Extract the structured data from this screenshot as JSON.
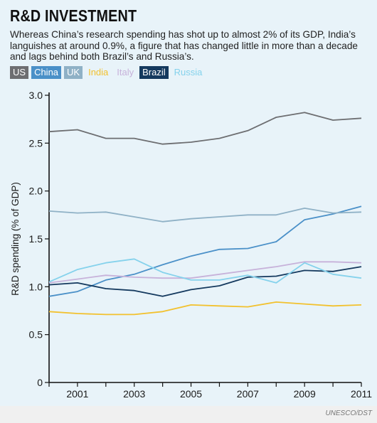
{
  "title": "R&D INVESTMENT",
  "subtitle": "Whereas China’s research spending has shot up to almost 2% of its GDP, India’s languishes at around 0.9%, a figure that has changed little in more than a decade and lags behind both Brazil’s and Russia’s.",
  "source": "UNESCO/DST",
  "chart_data": {
    "type": "line",
    "ylabel": "R&D spending (% of GDP)",
    "xlabel": "",
    "ylim": [
      0,
      3.0
    ],
    "xlim": [
      2000,
      2011
    ],
    "yticks": [
      "0",
      "0.5",
      "1.0",
      "1.5",
      "2.0",
      "2.5",
      "3.0"
    ],
    "xticks": [
      "2001",
      "2003",
      "2005",
      "2007",
      "2009",
      "2011"
    ],
    "grid": false,
    "legend_position": "top-left",
    "x": [
      2000,
      2001,
      2002,
      2003,
      2004,
      2005,
      2006,
      2007,
      2008,
      2009,
      2010,
      2011
    ],
    "series": [
      {
        "name": "US",
        "color": "#6d6e71",
        "values": [
          2.62,
          2.64,
          2.55,
          2.55,
          2.49,
          2.51,
          2.55,
          2.63,
          2.77,
          2.82,
          2.74,
          2.76
        ]
      },
      {
        "name": "China",
        "color": "#4a90c8",
        "values": [
          0.9,
          0.95,
          1.07,
          1.13,
          1.23,
          1.32,
          1.39,
          1.4,
          1.47,
          1.7,
          1.76,
          1.84
        ]
      },
      {
        "name": "UK",
        "color": "#8fb1c6",
        "values": [
          1.79,
          1.77,
          1.78,
          1.73,
          1.68,
          1.71,
          1.73,
          1.75,
          1.75,
          1.82,
          1.77,
          1.78
        ]
      },
      {
        "name": "India",
        "color": "#f2c12e",
        "values": [
          0.74,
          0.72,
          0.71,
          0.71,
          0.74,
          0.81,
          0.8,
          0.79,
          0.84,
          0.82,
          0.8,
          0.81
        ]
      },
      {
        "name": "Italy",
        "color": "#c7b2da",
        "values": [
          1.04,
          1.08,
          1.12,
          1.1,
          1.09,
          1.09,
          1.13,
          1.17,
          1.21,
          1.26,
          1.26,
          1.25
        ]
      },
      {
        "name": "Brazil",
        "color": "#14395e",
        "values": [
          1.02,
          1.04,
          0.98,
          0.96,
          0.9,
          0.97,
          1.01,
          1.1,
          1.11,
          1.17,
          1.16,
          1.21
        ]
      },
      {
        "name": "Russia",
        "color": "#85d2ec",
        "values": [
          1.05,
          1.18,
          1.25,
          1.29,
          1.15,
          1.07,
          1.07,
          1.12,
          1.04,
          1.25,
          1.13,
          1.09
        ]
      }
    ]
  }
}
